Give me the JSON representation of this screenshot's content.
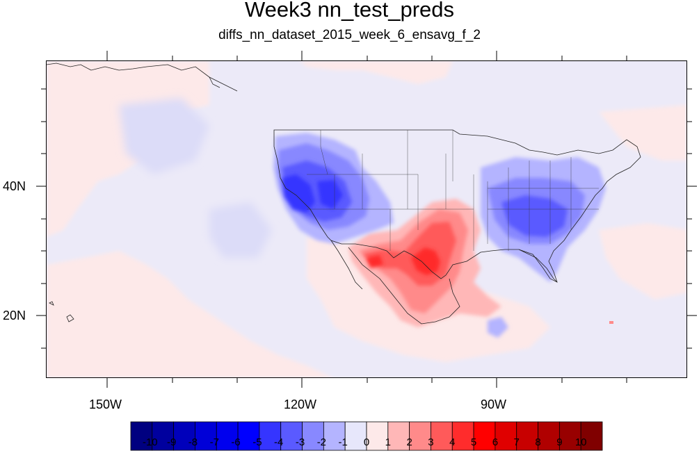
{
  "title": "Week3 nn_test_preds",
  "subtitle": "diffs_nn_dataset_2015_week_6_ensavg_f_2",
  "axes": {
    "lon_labels": [
      "150W",
      "120W",
      "90W"
    ],
    "lat_labels": [
      "40N",
      "20N"
    ]
  },
  "colorbar": {
    "labels": [
      "-10",
      "-9",
      "-8",
      "-7",
      "-6",
      "-5",
      "-4",
      "-3",
      "-2",
      "-1",
      "0",
      "1",
      "2",
      "3",
      "4",
      "5",
      "6",
      "7",
      "8",
      "9",
      "10"
    ],
    "colors": [
      "#000080",
      "#00009e",
      "#0000bb",
      "#0000d8",
      "#0000ee",
      "#0000ff",
      "#3535ff",
      "#5a5aff",
      "#8888ff",
      "#b4b4ff",
      "#e7e7fb",
      "#fde9e9",
      "#ffb7b7",
      "#ff8a8a",
      "#ff5a5a",
      "#ff2c2c",
      "#ff0000",
      "#e00000",
      "#c80000",
      "#b00000",
      "#980000",
      "#800000"
    ]
  },
  "map": {
    "background_color": "#eceaf8",
    "pink_color": "#fde9e9"
  }
}
